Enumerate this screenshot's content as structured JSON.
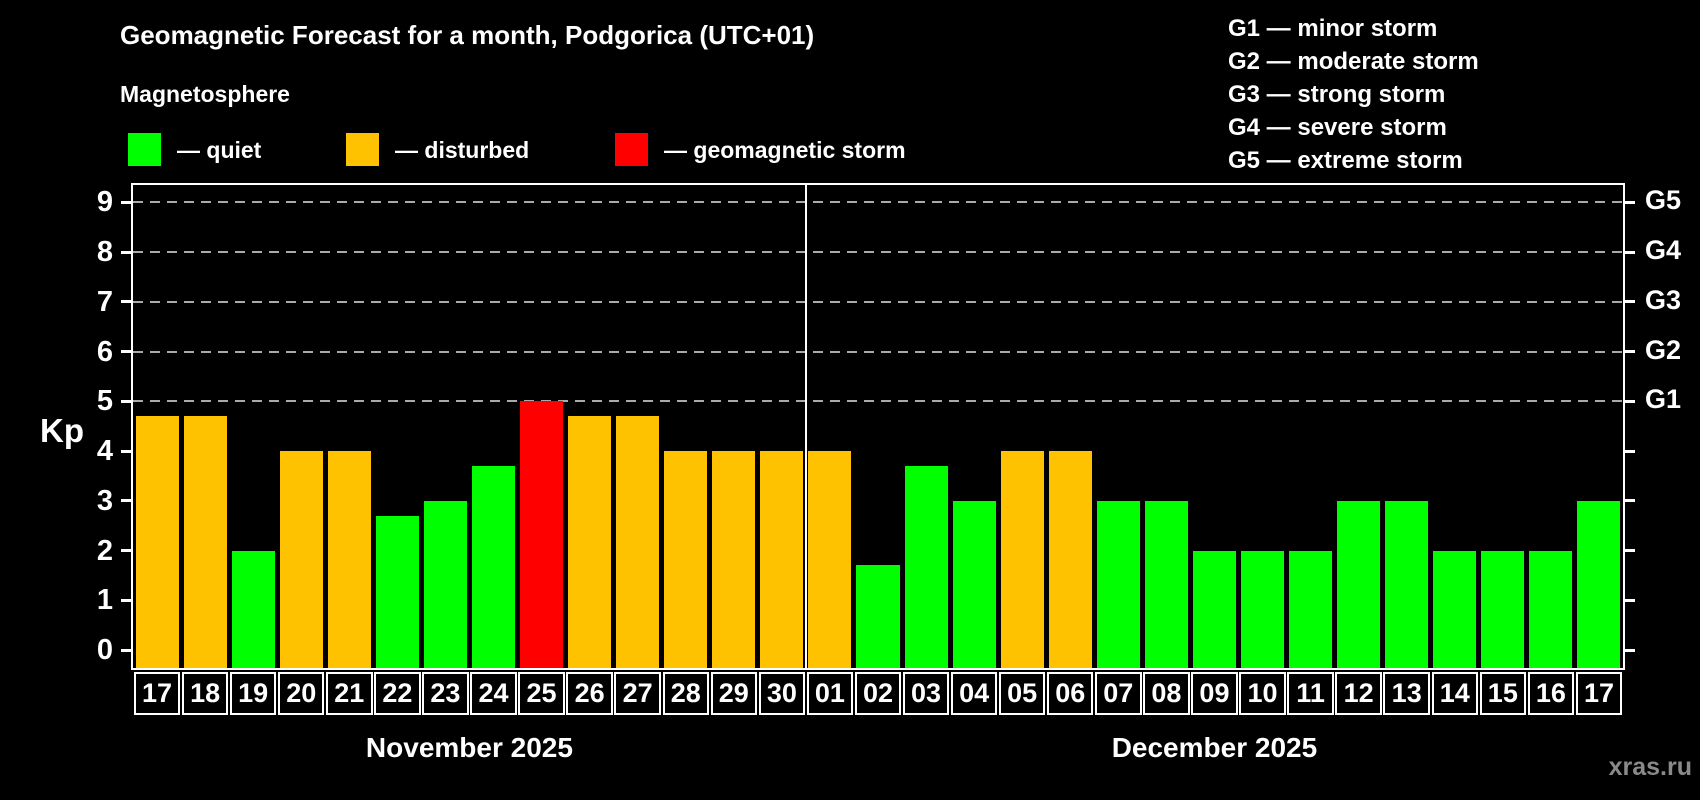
{
  "header": {
    "title": "Geomagnetic Forecast for a month, Podgorica (UTC+01)",
    "subtitle": "Magnetosphere"
  },
  "legend": {
    "quiet": "— quiet",
    "disturbed": "— disturbed",
    "storm": "— geomagnetic storm"
  },
  "g_legend": [
    "G1 — minor storm",
    "G2 — moderate storm",
    "G3 — strong storm",
    "G4 — severe storm",
    "G5 — extreme storm"
  ],
  "footer": {
    "watermark": "xras.ru"
  },
  "colors": {
    "quiet": "#00ff00",
    "disturbed": "#ffc200",
    "storm": "#ff0000",
    "grid": "#aaaaaa",
    "axis": "#ffffff",
    "label_box_bg": "#000000",
    "watermark": "#8a8a8a"
  },
  "chart_data": {
    "type": "bar",
    "title": "Geomagnetic Forecast for a month, Podgorica (UTC+01)",
    "ylabel": "Kp",
    "xlabel": "",
    "ylim": [
      -0.36,
      9.4
    ],
    "y_ticks": [
      0,
      1,
      2,
      3,
      4,
      5,
      6,
      7,
      8,
      9
    ],
    "grid_levels": [
      5,
      6,
      7,
      8,
      9
    ],
    "grid_style": "dashed",
    "legend_position": "top",
    "right_axis": [
      {
        "kp": 5,
        "label": "G1"
      },
      {
        "kp": 6,
        "label": "G2"
      },
      {
        "kp": 7,
        "label": "G3"
      },
      {
        "kp": 8,
        "label": "G4"
      },
      {
        "kp": 9,
        "label": "G5"
      }
    ],
    "months": [
      {
        "label": "November 2025",
        "days": 14
      },
      {
        "label": "December 2025",
        "days": 17
      }
    ],
    "bars": [
      {
        "day": "17",
        "kp": 4.7,
        "status": "disturbed"
      },
      {
        "day": "18",
        "kp": 4.7,
        "status": "disturbed"
      },
      {
        "day": "19",
        "kp": 2.0,
        "status": "quiet"
      },
      {
        "day": "20",
        "kp": 4.0,
        "status": "disturbed"
      },
      {
        "day": "21",
        "kp": 4.0,
        "status": "disturbed"
      },
      {
        "day": "22",
        "kp": 2.7,
        "status": "quiet"
      },
      {
        "day": "23",
        "kp": 3.0,
        "status": "quiet"
      },
      {
        "day": "24",
        "kp": 3.7,
        "status": "quiet"
      },
      {
        "day": "25",
        "kp": 5.0,
        "status": "storm"
      },
      {
        "day": "26",
        "kp": 4.7,
        "status": "disturbed"
      },
      {
        "day": "27",
        "kp": 4.7,
        "status": "disturbed"
      },
      {
        "day": "28",
        "kp": 4.0,
        "status": "disturbed"
      },
      {
        "day": "29",
        "kp": 4.0,
        "status": "disturbed"
      },
      {
        "day": "30",
        "kp": 4.0,
        "status": "disturbed"
      },
      {
        "day": "01",
        "kp": 4.0,
        "status": "disturbed"
      },
      {
        "day": "02",
        "kp": 1.7,
        "status": "quiet"
      },
      {
        "day": "03",
        "kp": 3.7,
        "status": "quiet"
      },
      {
        "day": "04",
        "kp": 3.0,
        "status": "quiet"
      },
      {
        "day": "05",
        "kp": 4.0,
        "status": "disturbed"
      },
      {
        "day": "06",
        "kp": 4.0,
        "status": "disturbed"
      },
      {
        "day": "07",
        "kp": 3.0,
        "status": "quiet"
      },
      {
        "day": "08",
        "kp": 3.0,
        "status": "quiet"
      },
      {
        "day": "09",
        "kp": 2.0,
        "status": "quiet"
      },
      {
        "day": "10",
        "kp": 2.0,
        "status": "quiet"
      },
      {
        "day": "11",
        "kp": 2.0,
        "status": "quiet"
      },
      {
        "day": "12",
        "kp": 3.0,
        "status": "quiet"
      },
      {
        "day": "13",
        "kp": 3.0,
        "status": "quiet"
      },
      {
        "day": "14",
        "kp": 2.0,
        "status": "quiet"
      },
      {
        "day": "15",
        "kp": 2.0,
        "status": "quiet"
      },
      {
        "day": "16",
        "kp": 2.0,
        "status": "quiet"
      },
      {
        "day": "17",
        "kp": 3.0,
        "status": "quiet"
      }
    ]
  }
}
